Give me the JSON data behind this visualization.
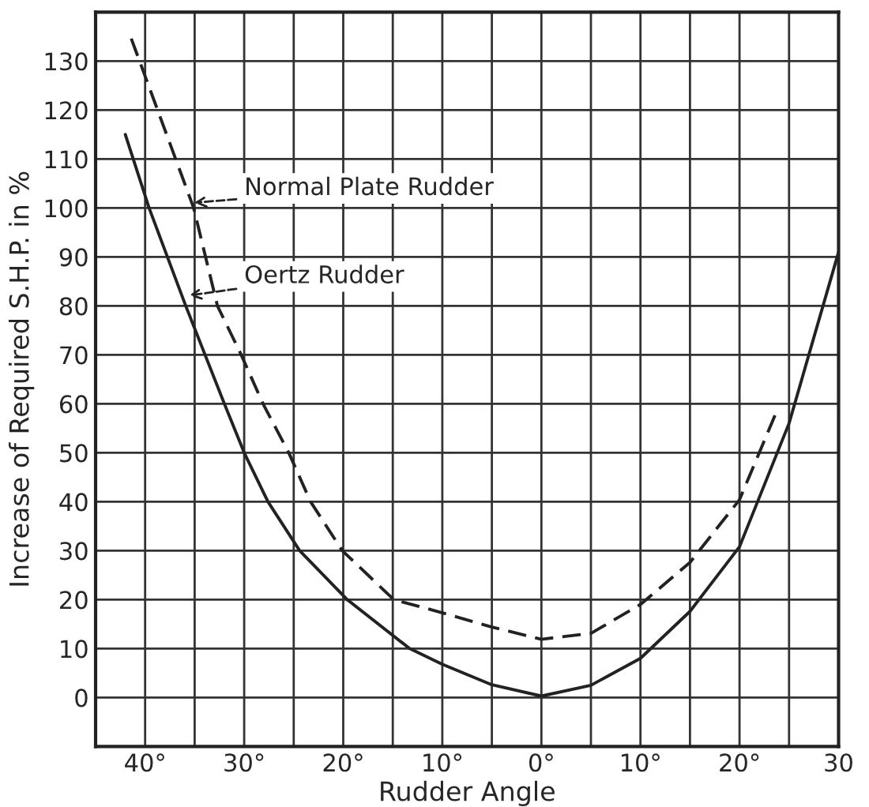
{
  "chart_data": {
    "type": "line",
    "xlabel": "Rudder Angle",
    "ylabel": "Increase of Required S.H.P. in %",
    "xlim": [
      -45,
      30
    ],
    "xticks": [
      {
        "value": -40,
        "label": "40°"
      },
      {
        "value": -35,
        "label": null
      },
      {
        "value": -30,
        "label": "30°"
      },
      {
        "value": -25,
        "label": null
      },
      {
        "value": -20,
        "label": "20°"
      },
      {
        "value": -15,
        "label": null
      },
      {
        "value": -10,
        "label": "10°"
      },
      {
        "value": -5,
        "label": null
      },
      {
        "value": 0,
        "label": "0°"
      },
      {
        "value": 5,
        "label": null
      },
      {
        "value": 10,
        "label": "10°"
      },
      {
        "value": 15,
        "label": null
      },
      {
        "value": 20,
        "label": "20°"
      },
      {
        "value": 25,
        "label": null
      },
      {
        "value": 30,
        "label": "30"
      }
    ],
    "ylim": [
      -10,
      140
    ],
    "yticks": [
      {
        "value": -10,
        "label": null
      },
      0,
      10,
      20,
      30,
      40,
      50,
      60,
      70,
      80,
      90,
      100,
      110,
      120,
      130,
      {
        "value": 140,
        "label": null
      }
    ],
    "grid": true,
    "series": [
      {
        "color": "#222222",
        "line_style": "dashed",
        "x": [
          -41.4,
          -35.1,
          -32.7,
          -30.3,
          -28.1,
          -25.5,
          -23.3,
          -20.1,
          -14.9,
          -10,
          -5,
          0,
          5,
          10,
          15,
          20,
          23.8
        ],
        "values": [
          134.6,
          100,
          80,
          70,
          60,
          50,
          40,
          30,
          20,
          17.3,
          14.4,
          11.9,
          13.1,
          19,
          27.6,
          40.4,
          58.7
        ]
      },
      {
        "color": "#222222",
        "line_style": "solid",
        "x": [
          -42,
          -39.6,
          -35.9,
          -32,
          -30,
          -27.6,
          -24.4,
          -19.6,
          -13.3,
          -10,
          -5,
          0,
          5,
          10,
          15,
          20,
          25,
          30
        ],
        "values": [
          115,
          100,
          80,
          60,
          50,
          40,
          30,
          20,
          10,
          6.8,
          2.6,
          0.3,
          2.5,
          8,
          17.6,
          30.8,
          56,
          91
        ]
      }
    ],
    "annotations": [
      {
        "text": "Normal Plate Rudder",
        "x": -35.5,
        "y": 101
      },
      {
        "text": "Oertz Rudder",
        "x": -36,
        "y": 82
      }
    ]
  }
}
